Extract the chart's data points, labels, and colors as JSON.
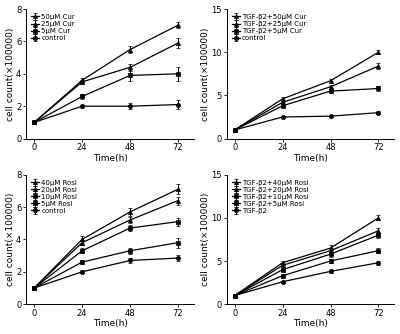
{
  "time": [
    0,
    24,
    48,
    72
  ],
  "subplot1": {
    "ylabel": "cell count(×100000)",
    "xlabel": "Time(h)",
    "series": [
      {
        "label": "50μM Cur",
        "values": [
          1.0,
          3.6,
          5.5,
          7.0
        ],
        "errors": [
          0.05,
          0.15,
          0.2,
          0.2
        ],
        "marker": "^"
      },
      {
        "label": "25μM Cur",
        "values": [
          1.0,
          3.5,
          4.4,
          5.9
        ],
        "errors": [
          0.05,
          0.12,
          0.22,
          0.3
        ],
        "marker": "^"
      },
      {
        "label": "5μM Cur",
        "values": [
          1.0,
          2.6,
          3.9,
          4.0
        ],
        "errors": [
          0.05,
          0.15,
          0.35,
          0.45
        ],
        "marker": "s"
      },
      {
        "label": "control",
        "values": [
          1.0,
          2.0,
          2.0,
          2.1
        ],
        "errors": [
          0.05,
          0.1,
          0.2,
          0.3
        ],
        "marker": "o"
      }
    ],
    "ylim": [
      0,
      8
    ],
    "yticks": [
      0,
      2,
      4,
      6,
      8
    ]
  },
  "subplot2": {
    "ylabel": "cell count(×100000)",
    "xlabel": "Time(h)",
    "series": [
      {
        "label": "TGF-β2+50μM Cur",
        "values": [
          1.0,
          4.6,
          6.7,
          10.0
        ],
        "errors": [
          0.05,
          0.2,
          0.25,
          0.25
        ],
        "marker": "^"
      },
      {
        "label": "TGF-β2+25μM Cur",
        "values": [
          1.0,
          4.2,
          6.0,
          8.4
        ],
        "errors": [
          0.05,
          0.2,
          0.2,
          0.3
        ],
        "marker": "^"
      },
      {
        "label": "TGF-β2+5μM Cur",
        "values": [
          1.0,
          3.8,
          5.5,
          5.8
        ],
        "errors": [
          0.05,
          0.15,
          0.25,
          0.3
        ],
        "marker": "s"
      },
      {
        "label": "control",
        "values": [
          1.0,
          2.5,
          2.6,
          3.0
        ],
        "errors": [
          0.05,
          0.1,
          0.15,
          0.2
        ],
        "marker": "o"
      }
    ],
    "ylim": [
      0,
      15
    ],
    "yticks": [
      0,
      5,
      10,
      15
    ]
  },
  "subplot3": {
    "ylabel": "cell count(×100000)",
    "xlabel": "Time(h)",
    "series": [
      {
        "label": "40μM Rosi",
        "values": [
          1.0,
          4.0,
          5.7,
          7.1
        ],
        "errors": [
          0.05,
          0.2,
          0.25,
          0.3
        ],
        "marker": "^"
      },
      {
        "label": "20μM Rosi",
        "values": [
          1.0,
          3.8,
          5.2,
          6.4
        ],
        "errors": [
          0.05,
          0.15,
          0.2,
          0.25
        ],
        "marker": "^"
      },
      {
        "label": "10μM Rosi",
        "values": [
          1.0,
          3.3,
          4.7,
          5.1
        ],
        "errors": [
          0.05,
          0.15,
          0.2,
          0.25
        ],
        "marker": "s"
      },
      {
        "label": "5μM Rosi",
        "values": [
          1.0,
          2.6,
          3.3,
          3.8
        ],
        "errors": [
          0.05,
          0.1,
          0.2,
          0.3
        ],
        "marker": "s"
      },
      {
        "label": "control",
        "values": [
          1.0,
          2.0,
          2.7,
          2.85
        ],
        "errors": [
          0.05,
          0.1,
          0.15,
          0.2
        ],
        "marker": "o"
      }
    ],
    "ylim": [
      0,
      8
    ],
    "yticks": [
      0,
      2,
      4,
      6,
      8
    ]
  },
  "subplot4": {
    "ylabel": "cell count(×100000)",
    "xlabel": "Time(h)",
    "series": [
      {
        "label": "TGF-β2+40μM Rosi",
        "values": [
          1.0,
          4.8,
          6.5,
          10.0
        ],
        "errors": [
          0.05,
          0.2,
          0.3,
          0.3
        ],
        "marker": "^"
      },
      {
        "label": "TGF-β2+20μM Rosi",
        "values": [
          1.0,
          4.5,
          6.2,
          8.5
        ],
        "errors": [
          0.05,
          0.2,
          0.25,
          0.3
        ],
        "marker": "^"
      },
      {
        "label": "TGF-β2+10μM Rosi",
        "values": [
          1.0,
          4.0,
          5.8,
          8.0
        ],
        "errors": [
          0.05,
          0.15,
          0.3,
          0.35
        ],
        "marker": "s"
      },
      {
        "label": "TGF-β2+5μM Rosi",
        "values": [
          1.0,
          3.3,
          5.0,
          6.2
        ],
        "errors": [
          0.05,
          0.15,
          0.25,
          0.3
        ],
        "marker": "s"
      },
      {
        "label": "TGF-β2",
        "values": [
          1.0,
          2.6,
          3.8,
          4.8
        ],
        "errors": [
          0.05,
          0.1,
          0.2,
          0.25
        ],
        "marker": "o"
      }
    ],
    "ylim": [
      0,
      15
    ],
    "yticks": [
      0,
      5,
      10,
      15
    ]
  },
  "linewidth": 0.9,
  "markersize": 3,
  "capsize": 1.5,
  "elinewidth": 0.7,
  "legend_fontsize": 5.0,
  "tick_labelsize": 6,
  "axis_labelsize": 6.5
}
